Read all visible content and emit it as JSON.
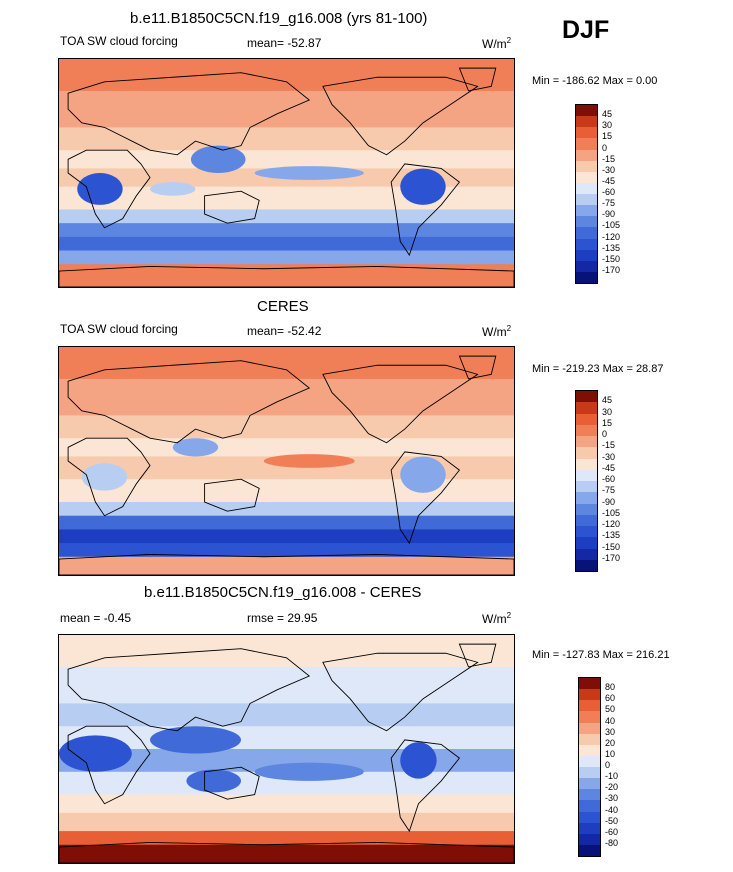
{
  "season": "DJF",
  "colors": {
    "c_n170": "#08137a",
    "c_n150": "#1428a6",
    "c_n135": "#1e3ec2",
    "c_n120": "#2c54d2",
    "c_n105": "#3f6ad8",
    "c_n90": "#5d86e0",
    "c_n75": "#86a7ea",
    "c_n60": "#b7cdf2",
    "c_n45": "#dfe8f8",
    "c_n30": "#fbe6d5",
    "c_n15": "#f7c9ad",
    "c_0": "#f4a482",
    "c_15": "#f07f57",
    "c_30": "#e85f35",
    "c_45": "#c83a17",
    "c_top": "#7f0f06",
    "land_line": "#000000"
  },
  "chart_data": [
    {
      "type": "heatmap",
      "title": "b.e11.B1850C5CN.f19_g16.008 (yrs 81-100)",
      "left_label": "TOA SW cloud forcing",
      "center_label": "mean= -52.87",
      "units": "W/m",
      "units_sup": "2",
      "minmax": "Min = -186.62 Max =   0.00",
      "colorbar_levels": [
        "45",
        "30",
        "15",
        "0",
        "-15",
        "-30",
        "-45",
        "-60",
        "-75",
        "-90",
        "-105",
        "-120",
        "-135",
        "-150",
        "-170"
      ],
      "pattern": "model"
    },
    {
      "type": "heatmap",
      "title": "CERES",
      "left_label": "TOA SW cloud forcing",
      "center_label": "mean= -52.42",
      "units": "W/m",
      "units_sup": "2",
      "minmax": "Min = -219.23 Max = 28.87",
      "colorbar_levels": [
        "45",
        "30",
        "15",
        "0",
        "-15",
        "-30",
        "-45",
        "-60",
        "-75",
        "-90",
        "-105",
        "-120",
        "-135",
        "-150",
        "-170"
      ],
      "pattern": "obs"
    },
    {
      "type": "heatmap",
      "title": "b.e11.B1850C5CN.f19_g16.008 - CERES",
      "left_label": "mean =  -0.45",
      "center_label": "rmse =  29.95",
      "units": "W/m",
      "units_sup": "2",
      "minmax": "Min = -127.83 Max = 216.21",
      "colorbar_levels": [
        "80",
        "60",
        "50",
        "40",
        "30",
        "20",
        "10",
        "0",
        "-10",
        "-20",
        "-30",
        "-40",
        "-50",
        "-60",
        "-80"
      ],
      "pattern": "diff"
    }
  ]
}
